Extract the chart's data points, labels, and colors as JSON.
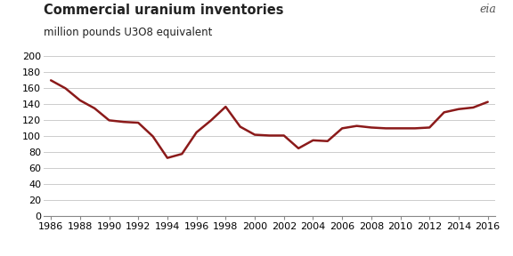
{
  "title": "Commercial uranium inventories",
  "subtitle": "million pounds U3O8 equivalent",
  "line_color": "#8B1A1A",
  "background_color": "#ffffff",
  "grid_color": "#cccccc",
  "ylim": [
    0,
    200
  ],
  "yticks": [
    0,
    20,
    40,
    60,
    80,
    100,
    120,
    140,
    160,
    180,
    200
  ],
  "xticks": [
    1986,
    1988,
    1990,
    1992,
    1994,
    1996,
    1998,
    2000,
    2002,
    2004,
    2006,
    2008,
    2010,
    2012,
    2014,
    2016
  ],
  "years": [
    1986,
    1987,
    1988,
    1989,
    1990,
    1991,
    1992,
    1993,
    1994,
    1995,
    1996,
    1997,
    1998,
    1999,
    2000,
    2001,
    2002,
    2003,
    2004,
    2005,
    2006,
    2007,
    2008,
    2009,
    2010,
    2011,
    2012,
    2013,
    2014,
    2015,
    2016
  ],
  "values": [
    170,
    160,
    145,
    135,
    120,
    118,
    117,
    100,
    73,
    78,
    105,
    120,
    137,
    112,
    102,
    101,
    101,
    85,
    95,
    94,
    110,
    113,
    111,
    110,
    110,
    110,
    111,
    130,
    134,
    136,
    143
  ],
  "xlim": [
    1985.5,
    2016.5
  ],
  "title_fontsize": 10.5,
  "subtitle_fontsize": 8.5,
  "tick_fontsize": 8,
  "eia_color": "#555555"
}
